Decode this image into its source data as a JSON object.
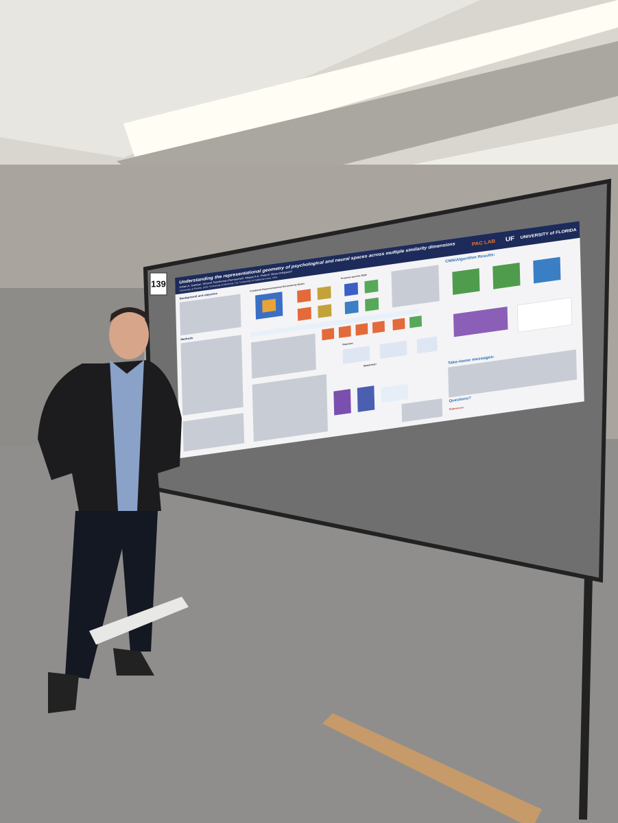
{
  "board_number": "139",
  "poster": {
    "title": "Understanding the representational geometry of psychological and neural spaces across multiple similarity dimensions",
    "authors": "Johan A. Gamba¹, Vincent Taschereau-Dumouchel², Megan A.K. Peters³, Brian Odegaard¹",
    "affiliations": "¹University of Florida, USA; ²University of Montreal, CA; ³University of California Irvine, USA",
    "sections": [
      "Background and objective",
      "Methods",
      "Combined Representational Dissimilarity Matrix",
      "Property-specific RDM",
      "Pearson",
      "Spearman",
      "CNN/Algorithm Results:",
      "Take-home messages:",
      "Questions?",
      "References"
    ],
    "logos": [
      "PAC LAB",
      "UF",
      "UNIVERSITY of FLORIDA"
    ]
  }
}
